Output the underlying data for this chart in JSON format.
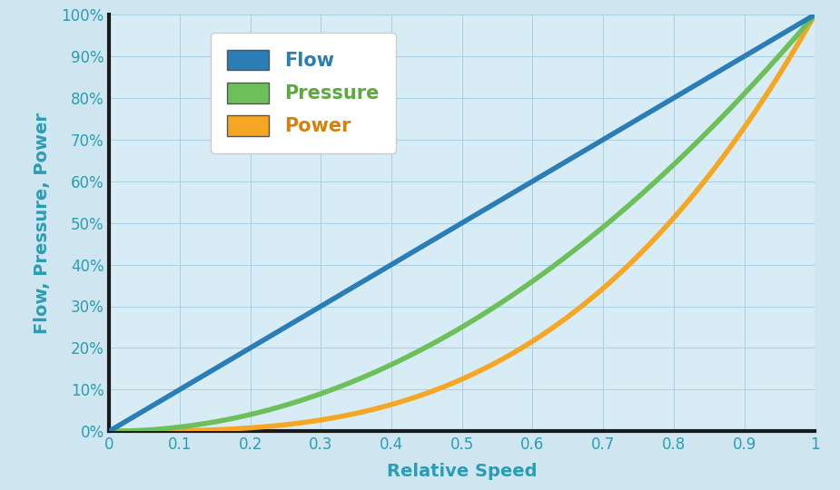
{
  "title": "",
  "xlabel": "Relative Speed",
  "ylabel": "Flow, Pressure, Power",
  "background_color": "#cfe5f0",
  "plot_bg_color": "#d8ecf5",
  "grid_color": "#a8cfe0",
  "flow_color": "#2a7db5",
  "pressure_color": "#6dbf5a",
  "power_color": "#f5a623",
  "spine_color": "#1a1a1a",
  "tick_label_color": "#2a9db5",
  "label_color": "#2a9db5",
  "legend_flow_color": "#2a7db5",
  "legend_pressure_color": "#5aaa40",
  "legend_power_color": "#d4820a",
  "xlim": [
    0,
    1
  ],
  "ylim": [
    0,
    1
  ],
  "xticks": [
    0,
    0.1,
    0.2,
    0.3,
    0.4,
    0.5,
    0.6,
    0.7,
    0.8,
    0.9,
    1.0
  ],
  "yticks": [
    0,
    0.1,
    0.2,
    0.3,
    0.4,
    0.5,
    0.6,
    0.7,
    0.8,
    0.9,
    1.0
  ],
  "flow_label": "Flow",
  "pressure_label": "Pressure",
  "power_label": "Power",
  "flow_exponent": 1,
  "pressure_exponent": 2,
  "power_exponent": 3,
  "line_width": 4.0,
  "legend_fontsize": 15,
  "tick_fontsize": 12,
  "axis_label_fontsize": 14,
  "spine_linewidth": 3.0
}
